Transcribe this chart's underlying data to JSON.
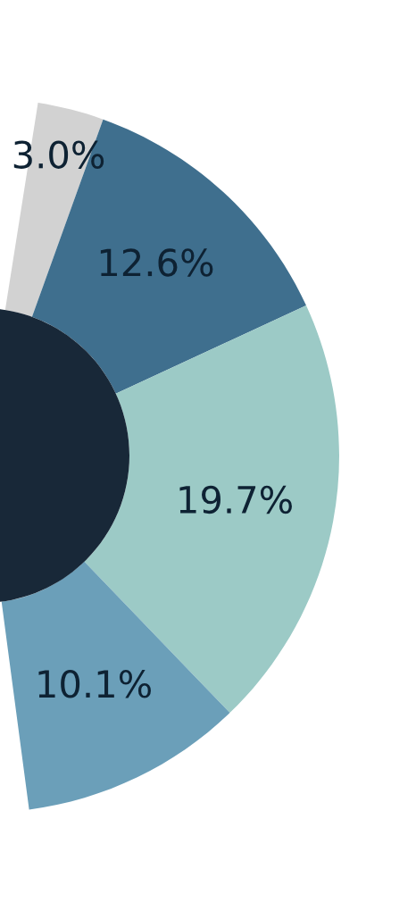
{
  "chart_data": {
    "type": "donut",
    "categories": [
      null,
      null,
      null,
      null
    ],
    "values": [
      3.0,
      12.6,
      19.7,
      10.1
    ],
    "colors": [
      "#d2d2d2",
      "#3f6f8e",
      "#9ccac6",
      "#6b9fb9"
    ],
    "value_labels": [
      "3.0%",
      "12.6%",
      "19.7%",
      "10.1%"
    ]
  }
}
